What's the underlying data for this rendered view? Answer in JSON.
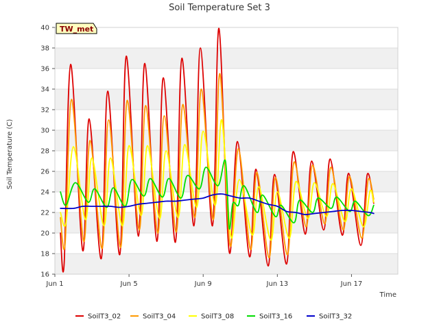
{
  "chart_data": {
    "type": "line",
    "title": "Soil Temperature Set 3",
    "xlabel": "Time",
    "ylabel": "Soil Temperature (C)",
    "site_tag": "TW_met",
    "x_unit": "day of June",
    "xlim": [
      1,
      19.5
    ],
    "ylim": [
      16,
      40
    ],
    "x_ticks": [
      {
        "value": 1,
        "label": "Jun 1"
      },
      {
        "value": 5,
        "label": "Jun 5"
      },
      {
        "value": 9,
        "label": "Jun 9"
      },
      {
        "value": 13,
        "label": "Jun 13"
      },
      {
        "value": 17,
        "label": "Jun 17"
      }
    ],
    "y_ticks": [
      16,
      18,
      20,
      22,
      24,
      26,
      28,
      30,
      32,
      34,
      36,
      38,
      40
    ],
    "grid": "horizontal bands",
    "legend_position": "bottom",
    "series": [
      {
        "name": "SoilT3_02",
        "color": "#dd0000",
        "points": [
          [
            1.3,
            20.0
          ],
          [
            1.5,
            17.0
          ],
          [
            1.85,
            36.4
          ],
          [
            2.5,
            18.3
          ],
          [
            2.85,
            31.1
          ],
          [
            3.5,
            17.5
          ],
          [
            3.85,
            33.8
          ],
          [
            4.5,
            17.9
          ],
          [
            4.85,
            37.2
          ],
          [
            5.5,
            19.7
          ],
          [
            5.85,
            36.5
          ],
          [
            6.5,
            19.2
          ],
          [
            6.85,
            35.1
          ],
          [
            7.5,
            19.1
          ],
          [
            7.85,
            37.0
          ],
          [
            8.5,
            20.7
          ],
          [
            8.85,
            38.0
          ],
          [
            9.5,
            20.7
          ],
          [
            9.85,
            39.9
          ],
          [
            10.4,
            18.2
          ],
          [
            10.85,
            28.9
          ],
          [
            11.5,
            17.7
          ],
          [
            11.85,
            26.2
          ],
          [
            12.5,
            16.8
          ],
          [
            12.85,
            25.7
          ],
          [
            13.5,
            17.0
          ],
          [
            13.85,
            27.9
          ],
          [
            14.5,
            19.9
          ],
          [
            14.85,
            27.0
          ],
          [
            15.5,
            20.3
          ],
          [
            15.85,
            27.2
          ],
          [
            16.5,
            19.8
          ],
          [
            16.85,
            25.8
          ],
          [
            17.5,
            18.8
          ],
          [
            17.85,
            25.7
          ],
          [
            18.2,
            22.9
          ]
        ]
      },
      {
        "name": "SoilT3_04",
        "color": "#ff9900",
        "points": [
          [
            1.3,
            21.5
          ],
          [
            1.55,
            18.9
          ],
          [
            1.9,
            33.0
          ],
          [
            2.55,
            19.2
          ],
          [
            2.9,
            29.0
          ],
          [
            3.55,
            18.5
          ],
          [
            3.9,
            31.0
          ],
          [
            4.55,
            18.6
          ],
          [
            4.9,
            32.9
          ],
          [
            5.55,
            20.3
          ],
          [
            5.9,
            32.4
          ],
          [
            6.55,
            20.0
          ],
          [
            6.9,
            31.4
          ],
          [
            7.55,
            20.1
          ],
          [
            7.9,
            32.5
          ],
          [
            8.55,
            21.5
          ],
          [
            8.9,
            34.0
          ],
          [
            9.55,
            21.3
          ],
          [
            9.9,
            35.5
          ],
          [
            10.45,
            18.8
          ],
          [
            10.9,
            28.2
          ],
          [
            11.55,
            18.4
          ],
          [
            11.9,
            25.9
          ],
          [
            12.55,
            17.6
          ],
          [
            12.9,
            25.4
          ],
          [
            13.55,
            17.9
          ],
          [
            13.9,
            26.9
          ],
          [
            14.55,
            20.6
          ],
          [
            14.9,
            26.6
          ],
          [
            15.55,
            20.9
          ],
          [
            15.9,
            26.4
          ],
          [
            16.55,
            20.3
          ],
          [
            16.9,
            25.5
          ],
          [
            17.55,
            19.5
          ],
          [
            17.9,
            25.2
          ],
          [
            18.2,
            23.3
          ]
        ]
      },
      {
        "name": "SoilT3_08",
        "color": "#ffff00",
        "points": [
          [
            1.3,
            22.0
          ],
          [
            1.6,
            21.0
          ],
          [
            2.0,
            28.4
          ],
          [
            2.65,
            21.3
          ],
          [
            3.0,
            27.3
          ],
          [
            3.65,
            20.7
          ],
          [
            4.0,
            27.3
          ],
          [
            4.65,
            20.7
          ],
          [
            5.0,
            28.5
          ],
          [
            5.65,
            21.7
          ],
          [
            6.0,
            28.5
          ],
          [
            6.65,
            21.4
          ],
          [
            7.0,
            28.0
          ],
          [
            7.65,
            21.5
          ],
          [
            8.0,
            28.6
          ],
          [
            8.65,
            22.5
          ],
          [
            9.0,
            29.9
          ],
          [
            9.65,
            22.7
          ],
          [
            10.0,
            31.0
          ],
          [
            10.5,
            19.6
          ],
          [
            10.95,
            25.2
          ],
          [
            11.65,
            19.8
          ],
          [
            12.0,
            24.5
          ],
          [
            12.65,
            19.3
          ],
          [
            13.0,
            24.0
          ],
          [
            13.65,
            19.5
          ],
          [
            14.0,
            25.0
          ],
          [
            14.65,
            21.4
          ],
          [
            15.0,
            24.9
          ],
          [
            15.65,
            21.6
          ],
          [
            16.0,
            24.8
          ],
          [
            16.65,
            21.1
          ],
          [
            17.0,
            24.3
          ],
          [
            17.65,
            20.6
          ],
          [
            18.0,
            24.1
          ],
          [
            18.2,
            23.0
          ]
        ]
      },
      {
        "name": "SoilT3_16",
        "color": "#00dd00",
        "points": [
          [
            1.3,
            24.0
          ],
          [
            1.6,
            22.7
          ],
          [
            2.1,
            24.9
          ],
          [
            2.8,
            23.0
          ],
          [
            3.15,
            24.3
          ],
          [
            3.8,
            22.5
          ],
          [
            4.15,
            24.4
          ],
          [
            4.8,
            22.6
          ],
          [
            5.15,
            25.2
          ],
          [
            5.8,
            23.6
          ],
          [
            6.15,
            25.3
          ],
          [
            6.8,
            23.5
          ],
          [
            7.15,
            25.3
          ],
          [
            7.8,
            23.4
          ],
          [
            8.15,
            25.6
          ],
          [
            8.8,
            24.3
          ],
          [
            9.15,
            26.4
          ],
          [
            9.8,
            24.6
          ],
          [
            10.2,
            27.0
          ],
          [
            10.4,
            20.5
          ],
          [
            10.6,
            22.9
          ],
          [
            10.9,
            22.7
          ],
          [
            11.2,
            24.6
          ],
          [
            11.9,
            22.0
          ],
          [
            12.2,
            23.7
          ],
          [
            12.9,
            21.6
          ],
          [
            13.2,
            22.7
          ],
          [
            13.9,
            21.0
          ],
          [
            14.2,
            23.2
          ],
          [
            14.9,
            22.0
          ],
          [
            15.2,
            23.4
          ],
          [
            15.9,
            22.4
          ],
          [
            16.2,
            23.5
          ],
          [
            16.9,
            22.1
          ],
          [
            17.2,
            23.1
          ],
          [
            17.9,
            21.7
          ],
          [
            18.2,
            22.7
          ]
        ]
      },
      {
        "name": "SoilT3_32",
        "color": "#0000cc",
        "points": [
          [
            1.3,
            22.4
          ],
          [
            2.0,
            22.4
          ],
          [
            2.5,
            22.6
          ],
          [
            3.0,
            22.6
          ],
          [
            3.5,
            22.6
          ],
          [
            4.0,
            22.6
          ],
          [
            4.5,
            22.5
          ],
          [
            5.0,
            22.6
          ],
          [
            5.5,
            22.8
          ],
          [
            6.0,
            22.9
          ],
          [
            6.5,
            23.0
          ],
          [
            7.0,
            23.1
          ],
          [
            7.5,
            23.1
          ],
          [
            8.0,
            23.2
          ],
          [
            8.5,
            23.3
          ],
          [
            9.0,
            23.4
          ],
          [
            9.5,
            23.7
          ],
          [
            10.0,
            23.8
          ],
          [
            10.5,
            23.6
          ],
          [
            11.0,
            23.4
          ],
          [
            11.5,
            23.4
          ],
          [
            12.0,
            23.1
          ],
          [
            12.5,
            22.8
          ],
          [
            13.0,
            22.6
          ],
          [
            13.5,
            22.1
          ],
          [
            14.0,
            22.0
          ],
          [
            14.5,
            21.8
          ],
          [
            15.0,
            21.9
          ],
          [
            15.5,
            22.0
          ],
          [
            16.0,
            22.1
          ],
          [
            16.5,
            22.2
          ],
          [
            17.0,
            22.2
          ],
          [
            17.5,
            22.1
          ],
          [
            18.0,
            22.0
          ],
          [
            18.2,
            21.9
          ]
        ]
      }
    ]
  }
}
